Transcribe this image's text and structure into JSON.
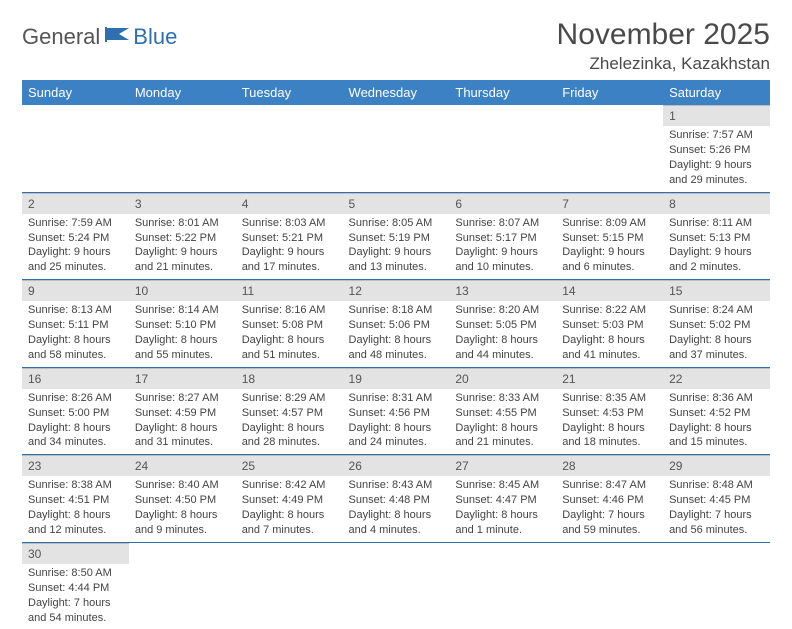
{
  "logo": {
    "general": "General",
    "blue": "Blue"
  },
  "title": "November 2025",
  "location": "Zhelezinka, Kazakhstan",
  "colors": {
    "header_bg": "#3b81c3",
    "row_divider": "#2f6fb0",
    "daynum_bg": "#e3e3e3",
    "text": "#444444"
  },
  "weekdays": [
    "Sunday",
    "Monday",
    "Tuesday",
    "Wednesday",
    "Thursday",
    "Friday",
    "Saturday"
  ],
  "weeks": [
    [
      null,
      null,
      null,
      null,
      null,
      null,
      {
        "n": "1",
        "sr": "Sunrise: 7:57 AM",
        "ss": "Sunset: 5:26 PM",
        "d1": "Daylight: 9 hours",
        "d2": "and 29 minutes."
      }
    ],
    [
      {
        "n": "2",
        "sr": "Sunrise: 7:59 AM",
        "ss": "Sunset: 5:24 PM",
        "d1": "Daylight: 9 hours",
        "d2": "and 25 minutes."
      },
      {
        "n": "3",
        "sr": "Sunrise: 8:01 AM",
        "ss": "Sunset: 5:22 PM",
        "d1": "Daylight: 9 hours",
        "d2": "and 21 minutes."
      },
      {
        "n": "4",
        "sr": "Sunrise: 8:03 AM",
        "ss": "Sunset: 5:21 PM",
        "d1": "Daylight: 9 hours",
        "d2": "and 17 minutes."
      },
      {
        "n": "5",
        "sr": "Sunrise: 8:05 AM",
        "ss": "Sunset: 5:19 PM",
        "d1": "Daylight: 9 hours",
        "d2": "and 13 minutes."
      },
      {
        "n": "6",
        "sr": "Sunrise: 8:07 AM",
        "ss": "Sunset: 5:17 PM",
        "d1": "Daylight: 9 hours",
        "d2": "and 10 minutes."
      },
      {
        "n": "7",
        "sr": "Sunrise: 8:09 AM",
        "ss": "Sunset: 5:15 PM",
        "d1": "Daylight: 9 hours",
        "d2": "and 6 minutes."
      },
      {
        "n": "8",
        "sr": "Sunrise: 8:11 AM",
        "ss": "Sunset: 5:13 PM",
        "d1": "Daylight: 9 hours",
        "d2": "and 2 minutes."
      }
    ],
    [
      {
        "n": "9",
        "sr": "Sunrise: 8:13 AM",
        "ss": "Sunset: 5:11 PM",
        "d1": "Daylight: 8 hours",
        "d2": "and 58 minutes."
      },
      {
        "n": "10",
        "sr": "Sunrise: 8:14 AM",
        "ss": "Sunset: 5:10 PM",
        "d1": "Daylight: 8 hours",
        "d2": "and 55 minutes."
      },
      {
        "n": "11",
        "sr": "Sunrise: 8:16 AM",
        "ss": "Sunset: 5:08 PM",
        "d1": "Daylight: 8 hours",
        "d2": "and 51 minutes."
      },
      {
        "n": "12",
        "sr": "Sunrise: 8:18 AM",
        "ss": "Sunset: 5:06 PM",
        "d1": "Daylight: 8 hours",
        "d2": "and 48 minutes."
      },
      {
        "n": "13",
        "sr": "Sunrise: 8:20 AM",
        "ss": "Sunset: 5:05 PM",
        "d1": "Daylight: 8 hours",
        "d2": "and 44 minutes."
      },
      {
        "n": "14",
        "sr": "Sunrise: 8:22 AM",
        "ss": "Sunset: 5:03 PM",
        "d1": "Daylight: 8 hours",
        "d2": "and 41 minutes."
      },
      {
        "n": "15",
        "sr": "Sunrise: 8:24 AM",
        "ss": "Sunset: 5:02 PM",
        "d1": "Daylight: 8 hours",
        "d2": "and 37 minutes."
      }
    ],
    [
      {
        "n": "16",
        "sr": "Sunrise: 8:26 AM",
        "ss": "Sunset: 5:00 PM",
        "d1": "Daylight: 8 hours",
        "d2": "and 34 minutes."
      },
      {
        "n": "17",
        "sr": "Sunrise: 8:27 AM",
        "ss": "Sunset: 4:59 PM",
        "d1": "Daylight: 8 hours",
        "d2": "and 31 minutes."
      },
      {
        "n": "18",
        "sr": "Sunrise: 8:29 AM",
        "ss": "Sunset: 4:57 PM",
        "d1": "Daylight: 8 hours",
        "d2": "and 28 minutes."
      },
      {
        "n": "19",
        "sr": "Sunrise: 8:31 AM",
        "ss": "Sunset: 4:56 PM",
        "d1": "Daylight: 8 hours",
        "d2": "and 24 minutes."
      },
      {
        "n": "20",
        "sr": "Sunrise: 8:33 AM",
        "ss": "Sunset: 4:55 PM",
        "d1": "Daylight: 8 hours",
        "d2": "and 21 minutes."
      },
      {
        "n": "21",
        "sr": "Sunrise: 8:35 AM",
        "ss": "Sunset: 4:53 PM",
        "d1": "Daylight: 8 hours",
        "d2": "and 18 minutes."
      },
      {
        "n": "22",
        "sr": "Sunrise: 8:36 AM",
        "ss": "Sunset: 4:52 PM",
        "d1": "Daylight: 8 hours",
        "d2": "and 15 minutes."
      }
    ],
    [
      {
        "n": "23",
        "sr": "Sunrise: 8:38 AM",
        "ss": "Sunset: 4:51 PM",
        "d1": "Daylight: 8 hours",
        "d2": "and 12 minutes."
      },
      {
        "n": "24",
        "sr": "Sunrise: 8:40 AM",
        "ss": "Sunset: 4:50 PM",
        "d1": "Daylight: 8 hours",
        "d2": "and 9 minutes."
      },
      {
        "n": "25",
        "sr": "Sunrise: 8:42 AM",
        "ss": "Sunset: 4:49 PM",
        "d1": "Daylight: 8 hours",
        "d2": "and 7 minutes."
      },
      {
        "n": "26",
        "sr": "Sunrise: 8:43 AM",
        "ss": "Sunset: 4:48 PM",
        "d1": "Daylight: 8 hours",
        "d2": "and 4 minutes."
      },
      {
        "n": "27",
        "sr": "Sunrise: 8:45 AM",
        "ss": "Sunset: 4:47 PM",
        "d1": "Daylight: 8 hours",
        "d2": "and 1 minute."
      },
      {
        "n": "28",
        "sr": "Sunrise: 8:47 AM",
        "ss": "Sunset: 4:46 PM",
        "d1": "Daylight: 7 hours",
        "d2": "and 59 minutes."
      },
      {
        "n": "29",
        "sr": "Sunrise: 8:48 AM",
        "ss": "Sunset: 4:45 PM",
        "d1": "Daylight: 7 hours",
        "d2": "and 56 minutes."
      }
    ],
    [
      {
        "n": "30",
        "sr": "Sunrise: 8:50 AM",
        "ss": "Sunset: 4:44 PM",
        "d1": "Daylight: 7 hours",
        "d2": "and 54 minutes."
      },
      null,
      null,
      null,
      null,
      null,
      null
    ]
  ]
}
